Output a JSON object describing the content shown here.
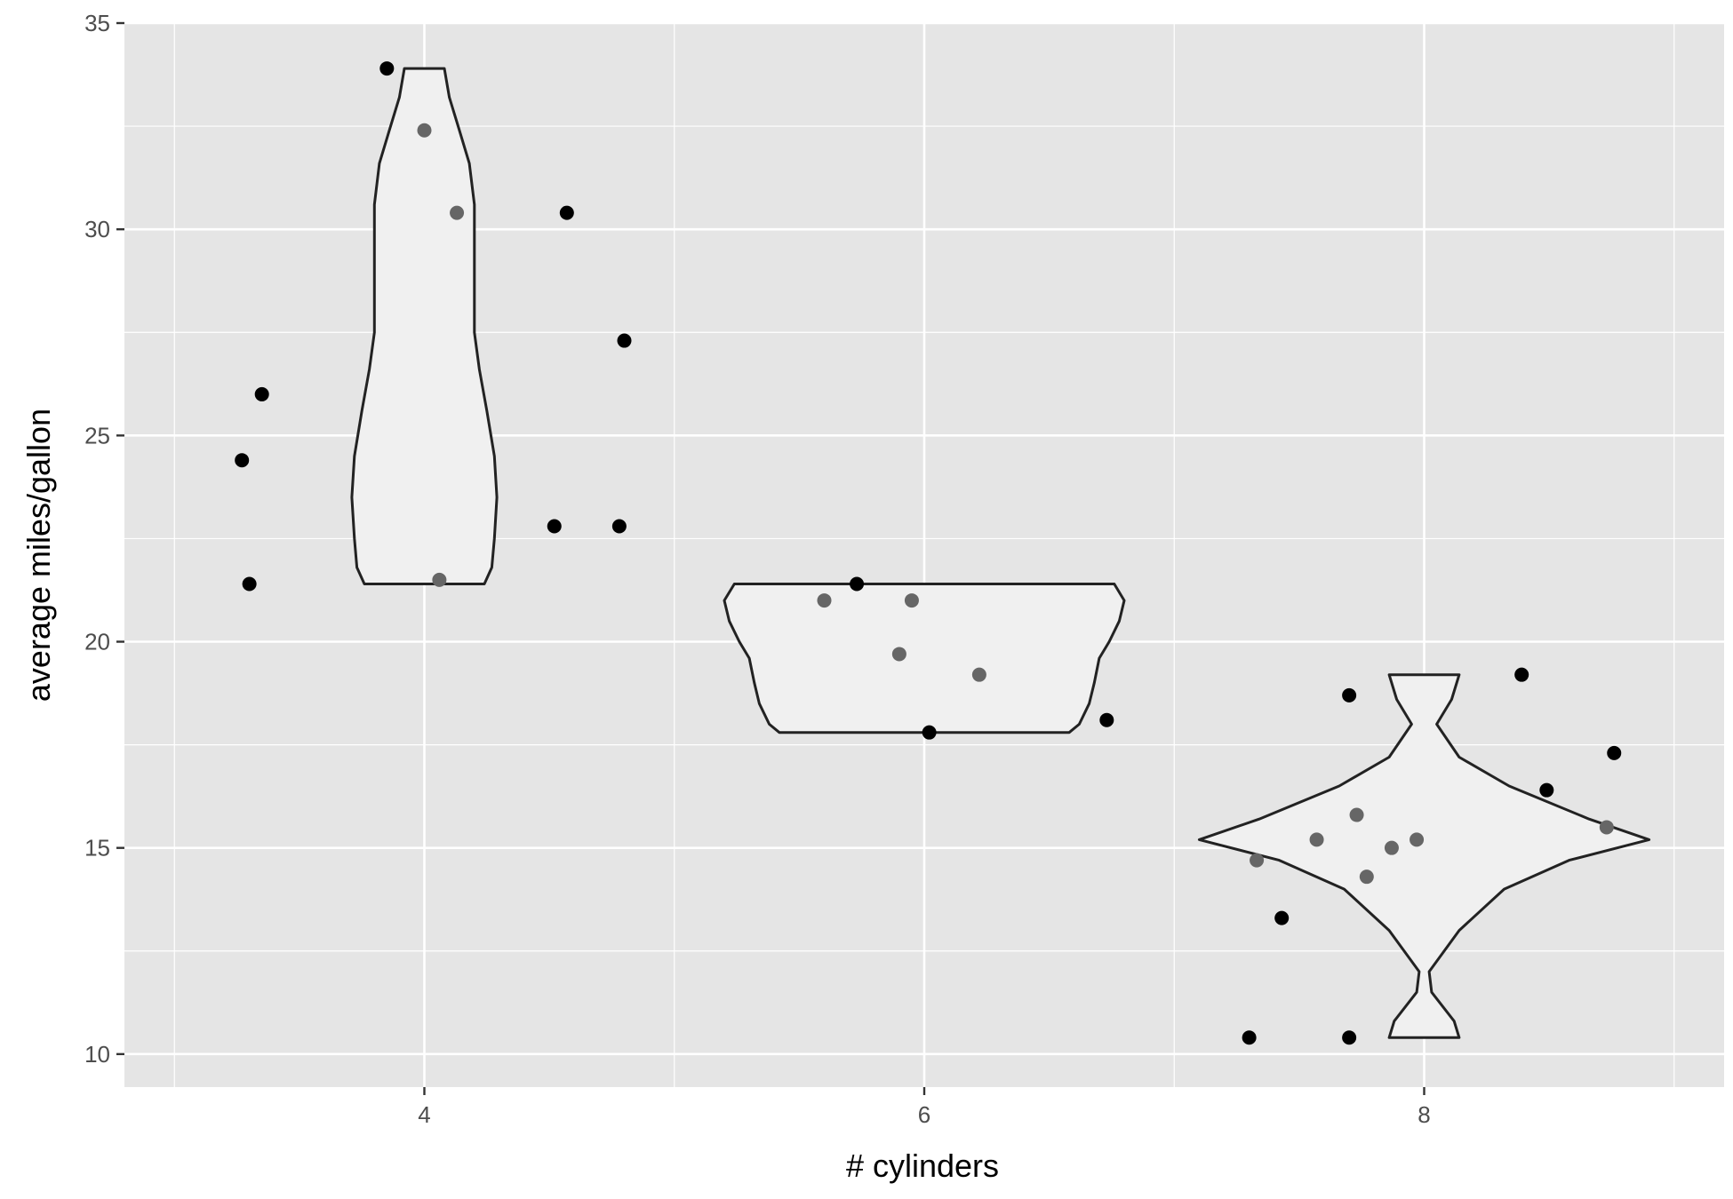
{
  "chart_data": {
    "type": "scatter",
    "xlabel": "# cylinders",
    "ylabel": "average miles/gallon",
    "xlim": [
      2.8,
      9.2
    ],
    "ylim": [
      9.2,
      35
    ],
    "x_ticks": [
      4,
      6,
      8
    ],
    "y_ticks": [
      10,
      15,
      20,
      25,
      30,
      35
    ],
    "grid": true,
    "legend": "none",
    "colors": {
      "panel": "#e5e5e5",
      "grid": "#ffffff",
      "point_dark": "#000000",
      "point_gray": "#666666",
      "violin_fill": "#f0f0f0",
      "violin_stroke": "#222222"
    },
    "violins": [
      {
        "group": 4,
        "profile": [
          [
            21.4,
            0.24
          ],
          [
            21.8,
            0.27
          ],
          [
            22.5,
            0.28
          ],
          [
            23.5,
            0.29
          ],
          [
            24.5,
            0.28
          ],
          [
            25.6,
            0.25
          ],
          [
            26.6,
            0.22
          ],
          [
            27.5,
            0.2
          ],
          [
            28.6,
            0.2
          ],
          [
            29.6,
            0.2
          ],
          [
            30.6,
            0.2
          ],
          [
            31.6,
            0.18
          ],
          [
            32.4,
            0.14
          ],
          [
            33.2,
            0.1
          ],
          [
            33.9,
            0.08
          ]
        ]
      },
      {
        "group": 6,
        "profile": [
          [
            17.8,
            0.58
          ],
          [
            18.0,
            0.62
          ],
          [
            18.5,
            0.66
          ],
          [
            19.0,
            0.68
          ],
          [
            19.6,
            0.7
          ],
          [
            20.0,
            0.74
          ],
          [
            20.5,
            0.78
          ],
          [
            21.0,
            0.8
          ],
          [
            21.4,
            0.76
          ]
        ]
      },
      {
        "group": 8,
        "profile": [
          [
            10.4,
            0.14
          ],
          [
            10.8,
            0.12
          ],
          [
            11.5,
            0.03
          ],
          [
            12.0,
            0.02
          ],
          [
            13.0,
            0.14
          ],
          [
            14.0,
            0.32
          ],
          [
            14.7,
            0.58
          ],
          [
            15.2,
            0.9
          ],
          [
            15.7,
            0.66
          ],
          [
            16.5,
            0.34
          ],
          [
            17.2,
            0.14
          ],
          [
            18.0,
            0.05
          ],
          [
            18.6,
            0.11
          ],
          [
            19.2,
            0.14
          ]
        ]
      }
    ],
    "points": [
      {
        "x": 3.27,
        "y": 24.4,
        "shade": "dark"
      },
      {
        "x": 3.3,
        "y": 21.4,
        "shade": "dark"
      },
      {
        "x": 3.35,
        "y": 26.0,
        "shade": "dark"
      },
      {
        "x": 3.85,
        "y": 33.9,
        "shade": "dark"
      },
      {
        "x": 4.0,
        "y": 32.4,
        "shade": "gray"
      },
      {
        "x": 4.06,
        "y": 21.5,
        "shade": "gray"
      },
      {
        "x": 4.13,
        "y": 30.4,
        "shade": "gray"
      },
      {
        "x": 4.52,
        "y": 22.8,
        "shade": "dark"
      },
      {
        "x": 4.57,
        "y": 30.4,
        "shade": "dark"
      },
      {
        "x": 4.78,
        "y": 22.8,
        "shade": "dark"
      },
      {
        "x": 4.8,
        "y": 27.3,
        "shade": "dark"
      },
      {
        "x": 5.6,
        "y": 21.0,
        "shade": "gray"
      },
      {
        "x": 5.73,
        "y": 21.4,
        "shade": "dark"
      },
      {
        "x": 5.9,
        "y": 19.7,
        "shade": "gray"
      },
      {
        "x": 5.95,
        "y": 21.0,
        "shade": "gray"
      },
      {
        "x": 6.02,
        "y": 17.8,
        "shade": "dark"
      },
      {
        "x": 6.22,
        "y": 19.2,
        "shade": "gray"
      },
      {
        "x": 6.73,
        "y": 18.1,
        "shade": "dark"
      },
      {
        "x": 7.3,
        "y": 10.4,
        "shade": "dark"
      },
      {
        "x": 7.33,
        "y": 14.7,
        "shade": "gray"
      },
      {
        "x": 7.43,
        "y": 13.3,
        "shade": "dark"
      },
      {
        "x": 7.57,
        "y": 15.2,
        "shade": "gray"
      },
      {
        "x": 7.7,
        "y": 18.7,
        "shade": "dark"
      },
      {
        "x": 7.7,
        "y": 10.4,
        "shade": "dark"
      },
      {
        "x": 7.73,
        "y": 15.8,
        "shade": "gray"
      },
      {
        "x": 7.77,
        "y": 14.3,
        "shade": "gray"
      },
      {
        "x": 7.87,
        "y": 15.0,
        "shade": "gray"
      },
      {
        "x": 7.97,
        "y": 15.2,
        "shade": "gray"
      },
      {
        "x": 8.39,
        "y": 19.2,
        "shade": "dark"
      },
      {
        "x": 8.49,
        "y": 16.4,
        "shade": "dark"
      },
      {
        "x": 8.73,
        "y": 15.5,
        "shade": "gray"
      },
      {
        "x": 8.76,
        "y": 17.3,
        "shade": "dark"
      }
    ]
  }
}
